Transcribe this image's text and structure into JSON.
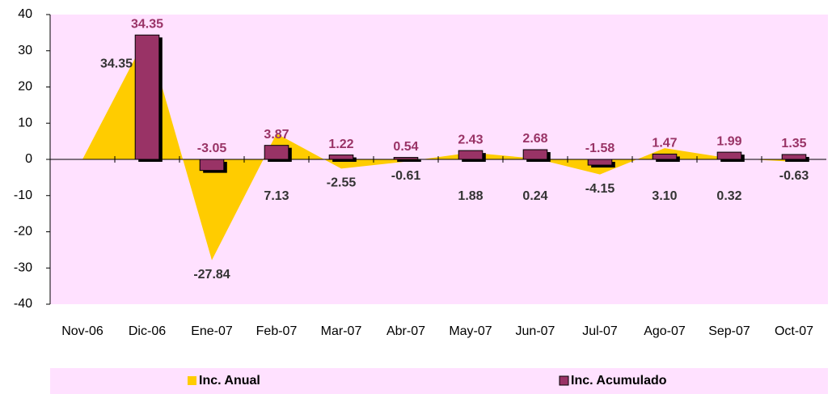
{
  "chart_data": {
    "type": "bar-area",
    "categories": [
      "Nov-06",
      "Dic-06",
      "Ene-07",
      "Feb-07",
      "Mar-07",
      "Abr-07",
      "May-07",
      "Jun-07",
      "Jul-07",
      "Ago-07",
      "Sep-07",
      "Oct-07"
    ],
    "series": [
      {
        "name": "Inc. Anual",
        "type": "area",
        "color": "#ffcc00",
        "values": [
          0,
          34.35,
          -27.84,
          7.13,
          -2.55,
          -0.61,
          1.88,
          0.24,
          -4.15,
          3.1,
          0.32,
          -0.63
        ],
        "value_labels": [
          null,
          "34.35",
          "-27.84",
          "7.13",
          "-2.55",
          "-0.61",
          "1.88",
          "0.24",
          "-4.15",
          "3.10",
          "0.32",
          "-0.63"
        ]
      },
      {
        "name": "Inc. Acumulado",
        "type": "bar",
        "color": "#993366",
        "values": [
          null,
          34.35,
          -3.05,
          3.87,
          1.22,
          0.54,
          2.43,
          2.68,
          -1.58,
          1.47,
          1.99,
          1.35
        ],
        "value_labels": [
          null,
          "34.35",
          "-3.05",
          "3.87",
          "1.22",
          "0.54",
          "2.43",
          "2.68",
          "-1.58",
          "1.47",
          "1.99",
          "1.35"
        ]
      }
    ],
    "ylim": [
      -40,
      40
    ],
    "yticks": [
      -40,
      -30,
      -20,
      -10,
      0,
      10,
      20,
      30,
      40
    ],
    "legend": "bottom"
  }
}
